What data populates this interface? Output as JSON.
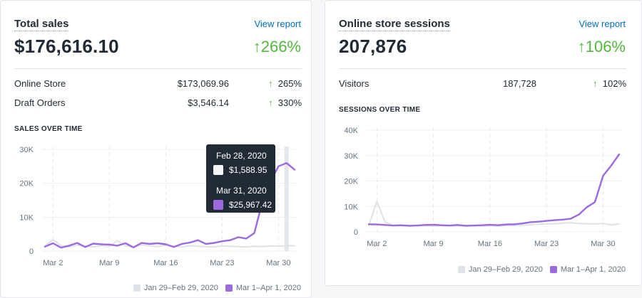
{
  "colors": {
    "current": "#9c6ade",
    "previous": "#dfe3e8",
    "positive": "#50b83c",
    "link": "#006fbb"
  },
  "sales_card": {
    "title": "Total sales",
    "view_report": "View report",
    "total": "$176,616.10",
    "change": "266%",
    "rows": [
      {
        "label": "Online Store",
        "value": "$173,069.96",
        "change": "265%"
      },
      {
        "label": "Draft Orders",
        "value": "$3,546.14",
        "change": "330%"
      }
    ],
    "chart_title": "SALES OVER TIME",
    "tooltip": {
      "prev_date": "Feb 28, 2020",
      "prev_value": "$1,588.95",
      "curr_date": "Mar 31, 2020",
      "curr_value": "$25,967.42"
    },
    "legend": [
      "Jan 29–Feb 29, 2020",
      "Mar 1–Apr 1, 2020"
    ]
  },
  "sessions_card": {
    "title": "Online store sessions",
    "view_report": "View report",
    "total": "207,876",
    "change": "106%",
    "rows": [
      {
        "label": "Visitors",
        "value": "187,728",
        "change": "102%"
      }
    ],
    "chart_title": "SESSIONS OVER TIME",
    "legend": [
      "Jan 29–Feb 29, 2020",
      "Mar 1–Apr 1, 2020"
    ]
  },
  "chart_data": [
    {
      "type": "line",
      "title": "SALES OVER TIME",
      "x": [
        "Mar 1",
        "Mar 2",
        "Mar 3",
        "Mar 4",
        "Mar 5",
        "Mar 6",
        "Mar 7",
        "Mar 8",
        "Mar 9",
        "Mar 10",
        "Mar 11",
        "Mar 12",
        "Mar 13",
        "Mar 14",
        "Mar 15",
        "Mar 16",
        "Mar 17",
        "Mar 18",
        "Mar 19",
        "Mar 20",
        "Mar 21",
        "Mar 22",
        "Mar 23",
        "Mar 24",
        "Mar 25",
        "Mar 26",
        "Mar 27",
        "Mar 28",
        "Mar 29",
        "Mar 30",
        "Mar 31",
        "Apr 1"
      ],
      "xticks": [
        "Mar 2",
        "Mar 9",
        "Mar 16",
        "Mar 23",
        "Mar 30"
      ],
      "yticks": [
        "0",
        "10K",
        "20K",
        "30K"
      ],
      "ylim": [
        0,
        30000
      ],
      "grid": true,
      "legend_position": "bottom-right",
      "highlight_index": 30,
      "series": [
        {
          "name": "Jan 29–Feb 29, 2020",
          "color": "#dfe3e8",
          "values": [
            1500,
            3400,
            1600,
            1200,
            1700,
            1500,
            1200,
            1600,
            1300,
            3100,
            1500,
            1200,
            1800,
            1500,
            1300,
            1700,
            1400,
            1200,
            1600,
            1400,
            1300,
            1200,
            1500,
            1400,
            1300,
            1200,
            1400,
            1300,
            1500,
            1400,
            1588.95,
            1500
          ]
        },
        {
          "name": "Mar 1–Apr 1, 2020",
          "color": "#9c6ade",
          "values": [
            1300,
            2300,
            1000,
            1600,
            2400,
            1200,
            2200,
            2000,
            1900,
            1600,
            2300,
            1100,
            2400,
            2100,
            2300,
            2000,
            1200,
            2100,
            2500,
            3200,
            2100,
            2400,
            2900,
            3200,
            4100,
            3700,
            5300,
            14500,
            20500,
            25000,
            25967.42,
            24000
          ]
        }
      ]
    },
    {
      "type": "line",
      "title": "SESSIONS OVER TIME",
      "x": [
        "Mar 1",
        "Mar 2",
        "Mar 3",
        "Mar 4",
        "Mar 5",
        "Mar 6",
        "Mar 7",
        "Mar 8",
        "Mar 9",
        "Mar 10",
        "Mar 11",
        "Mar 12",
        "Mar 13",
        "Mar 14",
        "Mar 15",
        "Mar 16",
        "Mar 17",
        "Mar 18",
        "Mar 19",
        "Mar 20",
        "Mar 21",
        "Mar 22",
        "Mar 23",
        "Mar 24",
        "Mar 25",
        "Mar 26",
        "Mar 27",
        "Mar 28",
        "Mar 29",
        "Mar 30",
        "Mar 31",
        "Apr 1"
      ],
      "xticks": [
        "Mar 2",
        "Mar 9",
        "Mar 16",
        "Mar 23",
        "Mar 30"
      ],
      "yticks": [
        "0",
        "10K",
        "20K",
        "30K",
        "40K"
      ],
      "ylim": [
        0,
        40000
      ],
      "grid": true,
      "legend_position": "bottom-right",
      "series": [
        {
          "name": "Jan 29–Feb 29, 2020",
          "color": "#dfe3e8",
          "values": [
            2500,
            12000,
            4000,
            2500,
            2400,
            2300,
            2500,
            2400,
            2300,
            2400,
            2300,
            2400,
            2300,
            2400,
            2300,
            2400,
            2300,
            2400,
            2500,
            2600,
            2800,
            3000,
            3100,
            3200,
            3400,
            3600,
            3300,
            3200,
            3100,
            3300,
            2700,
            3200
          ]
        },
        {
          "name": "Mar 1–Apr 1, 2020",
          "color": "#9c6ade",
          "values": [
            3000,
            2900,
            2700,
            2500,
            2600,
            2400,
            2500,
            2700,
            2800,
            2600,
            2500,
            2700,
            2400,
            2500,
            2600,
            2800,
            2600,
            2900,
            3000,
            3300,
            3800,
            4000,
            4300,
            4600,
            4800,
            5200,
            6800,
            9700,
            11700,
            22000,
            26000,
            30500
          ]
        }
      ]
    }
  ]
}
